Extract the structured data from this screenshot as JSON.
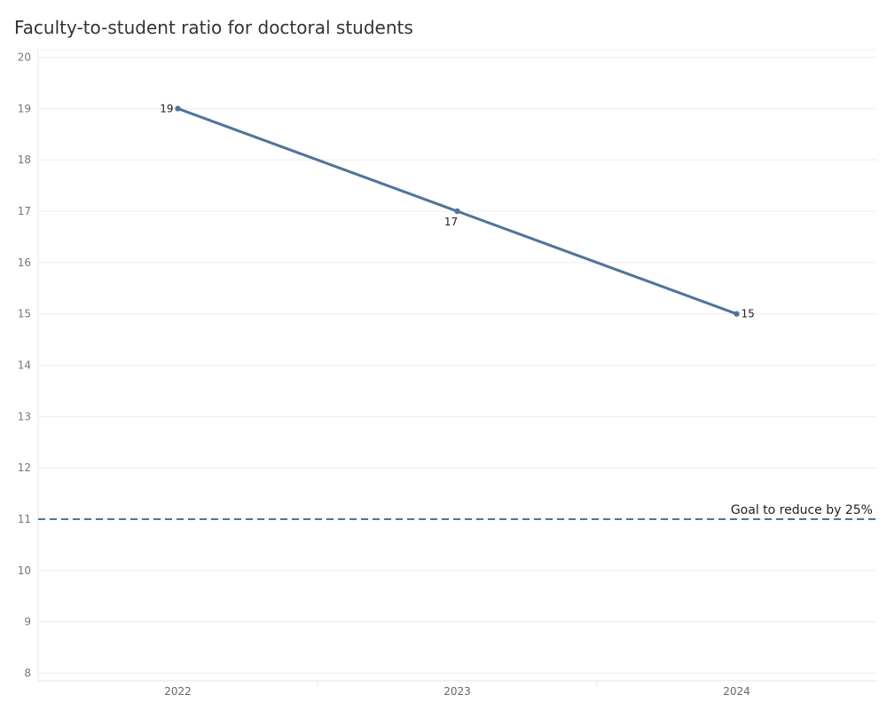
{
  "chart_data": {
    "type": "line",
    "title": "Faculty-to-student ratio for doctoral students",
    "xlabel": "",
    "ylabel": "",
    "categories": [
      "2022",
      "2023",
      "2024"
    ],
    "series": [
      {
        "values": [
          19,
          17,
          15
        ],
        "data_labels": [
          "19",
          "17",
          "15"
        ]
      }
    ],
    "ylim": [
      8,
      20
    ],
    "yticks": [
      20,
      19,
      18,
      17,
      16,
      15,
      14,
      13,
      12,
      11,
      10,
      9,
      8
    ],
    "reference_line": {
      "value": 11,
      "style": "dashed",
      "label": "Goal to reduce by 25%"
    },
    "grid": true,
    "legend": "none",
    "colors": {
      "line": "#4e74a0",
      "grid": "#ececec",
      "reference": "#4e74a0"
    }
  }
}
